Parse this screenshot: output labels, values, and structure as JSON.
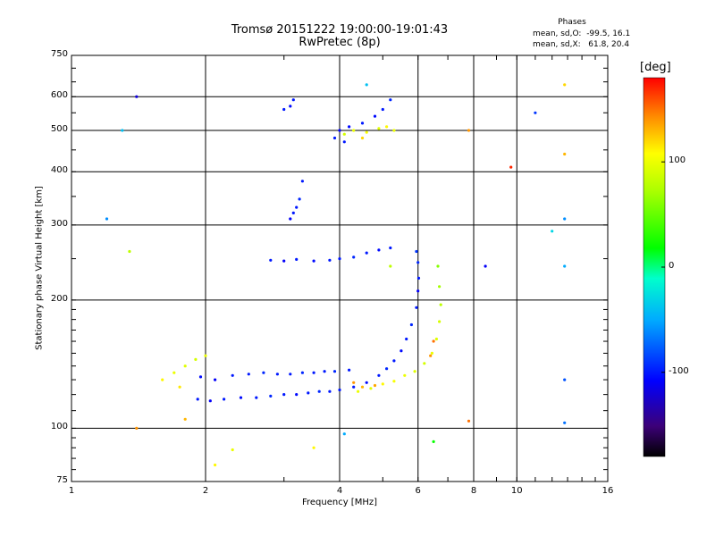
{
  "chart_data": {
    "type": "scatter",
    "title": "Tromsø 20151222 19:00:00-19:01:43",
    "subtitle": "RwPretec (8p)",
    "xlabel": "Frequency [MHz]",
    "ylabel": "Stationary phase Virtual Height [km]",
    "x_scale": "log",
    "y_scale": "log",
    "xlim": [
      1,
      16
    ],
    "ylim": [
      75,
      750
    ],
    "x_ticks": [
      "1",
      "2",
      "4",
      "6",
      "8",
      "10",
      "16"
    ],
    "x_tick_values": [
      1,
      2,
      4,
      6,
      8,
      10,
      16
    ],
    "x_grid_values": [
      1,
      2,
      4,
      6,
      8,
      10,
      16
    ],
    "y_ticks": [
      "75",
      "100",
      "200",
      "300",
      "400",
      "500",
      "600",
      "750"
    ],
    "y_tick_values": [
      75,
      100,
      200,
      300,
      400,
      500,
      600,
      750
    ],
    "y_grid_values": [
      100,
      200,
      300,
      400,
      500,
      600
    ],
    "grid": true,
    "stats": {
      "heading": "Phases",
      "line1": "mean, sd,O:  -99.5, 16.1",
      "line2": "mean, sd,X:   61.8, 20.4"
    },
    "colorbar": {
      "label": "[deg]",
      "range": [
        -180,
        180
      ],
      "ticks": [
        "100",
        "0",
        "-100"
      ],
      "tick_values": [
        100,
        0,
        -100
      ]
    },
    "series": [
      {
        "values": [
          [
            1.92,
            117,
            -100
          ],
          [
            2.05,
            116,
            -110
          ],
          [
            2.2,
            117,
            -100
          ],
          [
            2.4,
            118,
            -105
          ],
          [
            2.6,
            118,
            -100
          ],
          [
            2.8,
            119,
            -95
          ],
          [
            3.0,
            120,
            -100
          ],
          [
            3.2,
            120,
            -105
          ],
          [
            3.4,
            121,
            -100
          ],
          [
            3.6,
            122,
            -95
          ],
          [
            3.8,
            122,
            -100
          ],
          [
            4.0,
            123,
            -100
          ]
        ]
      },
      {
        "values": [
          [
            1.95,
            132,
            -105
          ],
          [
            2.1,
            130,
            -110
          ],
          [
            2.3,
            133,
            -100
          ],
          [
            2.5,
            134,
            -100
          ],
          [
            2.7,
            135,
            -95
          ],
          [
            2.9,
            134,
            -100
          ],
          [
            3.1,
            134,
            -100
          ],
          [
            3.3,
            135,
            -95
          ],
          [
            3.5,
            135,
            -100
          ],
          [
            3.7,
            136,
            -100
          ],
          [
            3.9,
            136,
            -95
          ],
          [
            4.2,
            137,
            -100
          ]
        ]
      },
      {
        "values": [
          [
            4.3,
            125,
            -100
          ],
          [
            4.6,
            128,
            -105
          ],
          [
            4.9,
            133,
            -100
          ],
          [
            5.1,
            138,
            -95
          ],
          [
            5.3,
            144,
            -100
          ],
          [
            5.5,
            152,
            -105
          ],
          [
            5.65,
            162,
            -100
          ],
          [
            5.8,
            175,
            -95
          ],
          [
            5.95,
            192,
            -100
          ],
          [
            6.0,
            210,
            -110
          ],
          [
            6.02,
            225,
            -100
          ],
          [
            6.0,
            245,
            -95
          ],
          [
            5.95,
            260,
            -90
          ]
        ]
      },
      {
        "values": [
          [
            4.4,
            122,
            100
          ],
          [
            4.7,
            124,
            95
          ],
          [
            5.0,
            127,
            110
          ],
          [
            5.3,
            129,
            105
          ],
          [
            5.6,
            133,
            100
          ],
          [
            5.9,
            136,
            95
          ],
          [
            6.2,
            142,
            90
          ],
          [
            6.45,
            150,
            100
          ],
          [
            6.6,
            162,
            95
          ],
          [
            6.7,
            178,
            90
          ],
          [
            6.75,
            195,
            80
          ],
          [
            6.7,
            215,
            70
          ],
          [
            6.65,
            240,
            60
          ]
        ]
      },
      {
        "values": [
          [
            1.6,
            130,
            110
          ],
          [
            1.7,
            135,
            100
          ],
          [
            1.8,
            140,
            95
          ],
          [
            1.9,
            145,
            90
          ],
          [
            2.0,
            148,
            100
          ],
          [
            1.75,
            125,
            115
          ]
        ]
      },
      {
        "values": [
          [
            4.5,
            125,
            130
          ],
          [
            4.8,
            126,
            135
          ],
          [
            6.4,
            148,
            140
          ],
          [
            6.5,
            160,
            150
          ],
          [
            4.3,
            128,
            140
          ]
        ]
      },
      {
        "values": [
          [
            2.8,
            248,
            -100
          ],
          [
            3.0,
            247,
            -110
          ],
          [
            3.2,
            249,
            -100
          ],
          [
            3.5,
            247,
            -105
          ],
          [
            3.8,
            248,
            -100
          ],
          [
            4.0,
            250,
            -100
          ],
          [
            4.3,
            252,
            -95
          ],
          [
            4.6,
            258,
            -100
          ],
          [
            4.9,
            262,
            -105
          ],
          [
            5.2,
            265,
            -100
          ]
        ]
      },
      {
        "values": [
          [
            3.1,
            310,
            -110
          ],
          [
            3.15,
            320,
            -100
          ],
          [
            3.2,
            330,
            -100
          ],
          [
            3.25,
            345,
            -95
          ],
          [
            3.3,
            380,
            -100
          ],
          [
            3.1,
            570,
            -105
          ],
          [
            3.15,
            590,
            -100
          ]
        ]
      },
      {
        "values": [
          [
            3.9,
            480,
            -100
          ],
          [
            4.0,
            500,
            -110
          ],
          [
            4.2,
            510,
            -105
          ],
          [
            4.5,
            520,
            -100
          ],
          [
            4.8,
            540,
            -105
          ],
          [
            5.0,
            560,
            -100
          ],
          [
            5.2,
            590,
            -95
          ],
          [
            4.1,
            470,
            -100
          ]
        ]
      },
      {
        "values": [
          [
            4.1,
            490,
            90
          ],
          [
            4.3,
            500,
            100
          ],
          [
            4.6,
            495,
            105
          ],
          [
            4.9,
            505,
            95
          ],
          [
            5.1,
            510,
            110
          ],
          [
            5.3,
            500,
            100
          ],
          [
            4.5,
            480,
            120
          ]
        ]
      },
      {
        "values": [
          [
            1.3,
            500,
            -40
          ],
          [
            1.4,
            600,
            -120
          ],
          [
            1.2,
            310,
            -60
          ],
          [
            1.4,
            100,
            140
          ],
          [
            1.35,
            260,
            80
          ],
          [
            3.0,
            560,
            -100
          ],
          [
            4.6,
            640,
            -40
          ],
          [
            5.2,
            240,
            80
          ],
          [
            6.5,
            93,
            20
          ],
          [
            7.8,
            500,
            140
          ],
          [
            8.5,
            240,
            -110
          ],
          [
            9.7,
            410,
            170
          ],
          [
            11.0,
            550,
            -90
          ],
          [
            12.0,
            290,
            -30
          ],
          [
            12.8,
            640,
            120
          ],
          [
            12.8,
            440,
            130
          ],
          [
            12.8,
            310,
            -60
          ],
          [
            12.8,
            240,
            -50
          ],
          [
            12.8,
            130,
            -80
          ],
          [
            12.8,
            103,
            -70
          ],
          [
            4.1,
            97,
            -50
          ],
          [
            2.1,
            82,
            110
          ],
          [
            2.3,
            89,
            100
          ],
          [
            3.5,
            90,
            110
          ],
          [
            1.8,
            105,
            130
          ],
          [
            7.8,
            104,
            150
          ]
        ]
      }
    ]
  }
}
